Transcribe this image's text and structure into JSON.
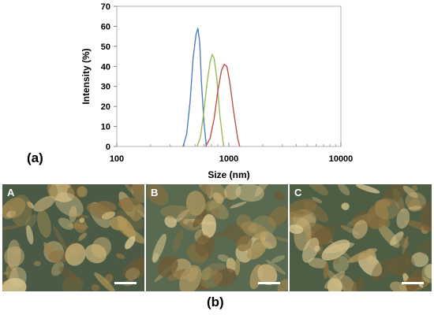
{
  "labels": {
    "panel_a": "(a)",
    "panel_b": "(b)"
  },
  "chart_data": {
    "type": "line",
    "xlabel": "Size (nm)",
    "ylabel": "Intensity (%)",
    "xscale": "log",
    "xlim": [
      100,
      10000
    ],
    "ylim": [
      0,
      70
    ],
    "x_ticks": [
      "100",
      "1000",
      "10000"
    ],
    "y_ticks": [
      "0",
      "10",
      "20",
      "30",
      "40",
      "50",
      "60",
      "70"
    ],
    "grid": false,
    "legend": "none",
    "series": [
      {
        "color": "#4f81bd",
        "x": [
          390,
          420,
          450,
          480,
          510,
          530,
          550,
          570,
          600,
          630
        ],
        "y": [
          0,
          6,
          22,
          44,
          56,
          59,
          52,
          32,
          12,
          0
        ]
      },
      {
        "color": "#9bbb59",
        "x": [
          520,
          560,
          600,
          640,
          680,
          710,
          740,
          780,
          830,
          880,
          900
        ],
        "y": [
          0,
          5,
          18,
          32,
          42,
          46,
          44,
          34,
          16,
          4,
          0
        ]
      },
      {
        "color": "#c0504d",
        "x": [
          620,
          680,
          740,
          800,
          860,
          910,
          960,
          1020,
          1100,
          1200,
          1250
        ],
        "y": [
          0,
          4,
          14,
          28,
          38,
          41,
          40,
          32,
          18,
          4,
          0
        ]
      }
    ]
  },
  "micrographs": [
    {
      "letter": "A",
      "bg": "#4a5a44",
      "fill": "#b59a5a"
    },
    {
      "letter": "B",
      "bg": "#5a6a50",
      "fill": "#a99560"
    },
    {
      "letter": "C",
      "bg": "#4e5e45",
      "fill": "#ad955e"
    }
  ]
}
